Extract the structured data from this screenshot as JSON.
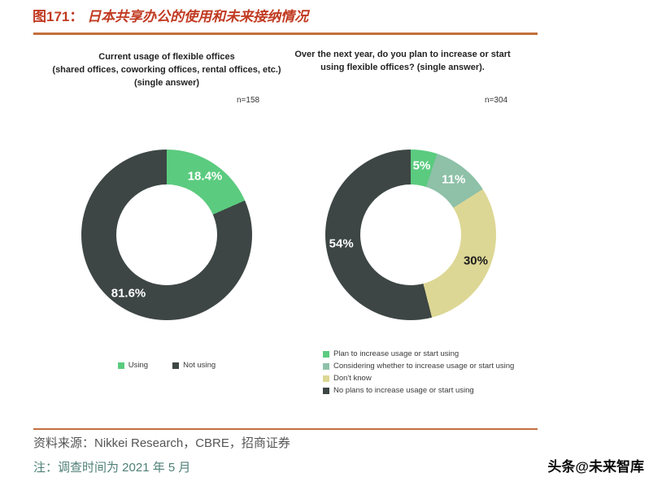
{
  "header": {
    "figure_label": "图171：",
    "title": "日本共享办公的使用和未来接纳情况"
  },
  "chart_data": [
    {
      "type": "pie",
      "title": "Current usage of flexible offices\n(shared offices, coworking offices, rental offices, etc.)\n(single answer)",
      "n_label": "n=158",
      "legend_position": "bottom-horizontal",
      "slices": [
        {
          "label": "Using",
          "value": 18.4,
          "display": "18.4%",
          "color": "#5bcb7f",
          "value_color": "#ffffff"
        },
        {
          "label": "Not using",
          "value": 81.6,
          "display": "81.6%",
          "color": "#3d4644",
          "value_color": "#ffffff"
        }
      ]
    },
    {
      "type": "pie",
      "title": "Over the next year, do you plan to increase or start\nusing flexible offices? (single answer).",
      "n_label": "n=304",
      "legend_position": "bottom-vertical",
      "slices": [
        {
          "label": "Plan to increase usage or start using",
          "value": 5,
          "display": "5%",
          "color": "#5bcb7f",
          "value_color": "#ffffff"
        },
        {
          "label": "Considering whether to increase usage or start using",
          "value": 11,
          "display": "11%",
          "color": "#8ec1a8",
          "value_color": "#ffffff"
        },
        {
          "label": "Don't know",
          "value": 30,
          "display": "30%",
          "color": "#ddd795",
          "value_color": "#1c1c1c"
        },
        {
          "label": "No plans to increase usage or start using",
          "value": 54,
          "display": "54%",
          "color": "#3d4644",
          "value_color": "#ffffff"
        }
      ]
    }
  ],
  "footer": {
    "source": "资料来源：Nikkei Research，CBRE，招商证券",
    "note": "注：调查时间为 2021 年 5 月",
    "watermark": "头条@未来智库"
  }
}
